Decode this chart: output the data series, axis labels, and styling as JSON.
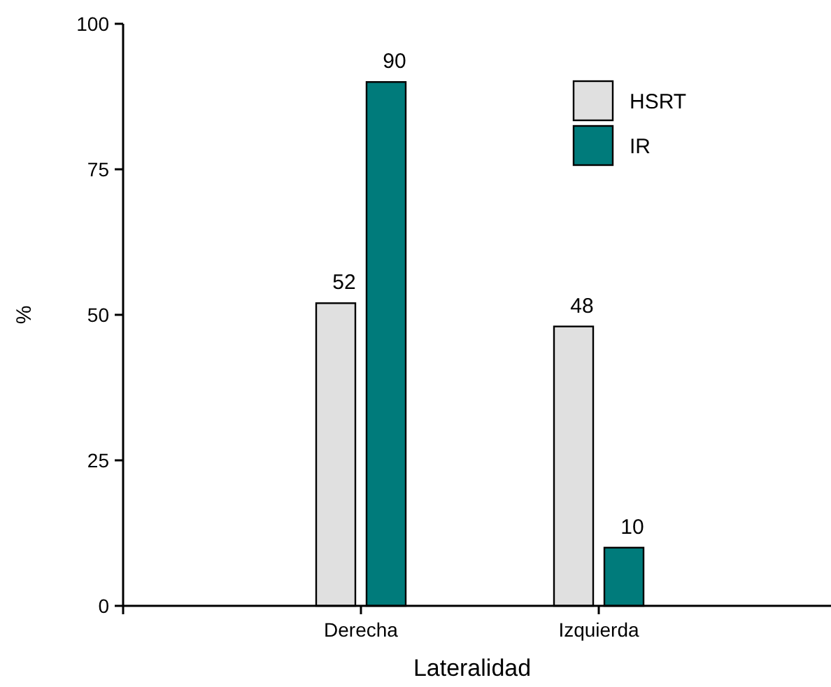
{
  "chart_data": {
    "type": "bar",
    "xlabel": "Lateralidad",
    "ylabel": "%",
    "categories": [
      "Derecha",
      "Izquierda"
    ],
    "series": [
      {
        "name": "HSRT",
        "color": "#e0e0e0",
        "values": [
          52,
          48
        ]
      },
      {
        "name": "IR",
        "color": "#007b7b",
        "values": [
          90,
          10
        ]
      }
    ],
    "ylim": [
      0,
      100
    ],
    "yticks": [
      0,
      25,
      50,
      75,
      100
    ],
    "data_labels": true,
    "legend": "top right",
    "grid": false
  }
}
